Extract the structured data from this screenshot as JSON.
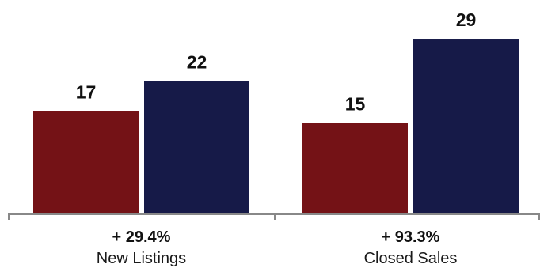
{
  "chart_data": {
    "type": "bar",
    "categories": [
      "New Listings",
      "Closed Sales"
    ],
    "change_labels": [
      "+ 29.4%",
      "+ 93.3%"
    ],
    "series": [
      {
        "values": [
          17,
          15
        ]
      },
      {
        "values": [
          22,
          29
        ]
      }
    ],
    "colors": [
      "#741216",
      "#161a48"
    ],
    "axis_color": "#888888",
    "value_labels": true,
    "grid": false,
    "legend": "none"
  }
}
